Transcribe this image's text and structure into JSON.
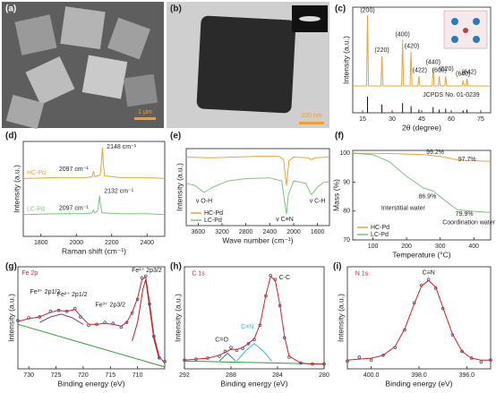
{
  "images": [
    {
      "panel": "(a)",
      "scale_bar": "1 μm"
    },
    {
      "panel": "(b)",
      "scale_bar": "200 nm"
    }
  ],
  "chart_data": [
    {
      "type": "line",
      "panel": "(c)",
      "xlabel": "2θ (degree)",
      "ylabel": "Intensity (a.u.)",
      "xlim": [
        10,
        80
      ],
      "xticks": [
        15,
        30,
        45,
        60,
        75
      ],
      "ylim": [
        -3,
        10
      ],
      "series": [
        {
          "color": "#e8a33d",
          "style": "line",
          "x": [
            10,
            17,
            17.5,
            18,
            24.3,
            24.8,
            25.3,
            34.8,
            35.3,
            35.8,
            39.1,
            39.6,
            40.1,
            43.1,
            43.6,
            44.1,
            50.3,
            50.8,
            51.3,
            53.4,
            53.9,
            54.4,
            56.7,
            57.2,
            57.7,
            65.5,
            66,
            66.5,
            67.5,
            68,
            68.5,
            80
          ],
          "values": [
            0.3,
            0.3,
            9,
            0.3,
            0.3,
            4,
            0.3,
            0.3,
            6,
            0.3,
            0.3,
            4.5,
            0.3,
            0.3,
            1.5,
            0.3,
            0.3,
            2.5,
            0.3,
            0.3,
            1.5,
            0.3,
            0.3,
            1.5,
            0.3,
            0.3,
            1,
            0.3,
            0.3,
            1.2,
            0.3,
            0.3
          ]
        },
        {
          "color": "#111111",
          "style": "sticks",
          "x": [
            17.5,
            24.8,
            35.3,
            39.6,
            43.6,
            50.8,
            53.9,
            57.2,
            66,
            68
          ],
          "values": [
            -1,
            -2,
            -1.8,
            -2.2,
            -2.6,
            -2.3,
            -2.6,
            -2.5,
            -2.7,
            -2.6
          ]
        }
      ],
      "annotations": [
        {
          "text": "(200)",
          "x": 17.5,
          "y": 9.6
        },
        {
          "text": "(220)",
          "x": 24.8,
          "y": 4.7
        },
        {
          "text": "(400)",
          "x": 35.3,
          "y": 6.6
        },
        {
          "text": "(420)",
          "x": 40,
          "y": 5.2
        },
        {
          "text": "(422)",
          "x": 44,
          "y": 2.2
        },
        {
          "text": "(440)",
          "x": 50.8,
          "y": 3.2
        },
        {
          "text": "(600)",
          "x": 54,
          "y": 2.2
        },
        {
          "text": "(620)",
          "x": 57.5,
          "y": 2.4
        },
        {
          "text": "(640)",
          "x": 66,
          "y": 1.8
        },
        {
          "text": "(642)",
          "x": 69,
          "y": 2.0
        },
        {
          "text": "JCPDS No. 01-0239",
          "x": 60,
          "y": -0.8
        }
      ]
    },
    {
      "type": "line",
      "panel": "(d)",
      "xlabel": "Raman shift (cm⁻¹)",
      "ylabel": "Intensity (a.u.)",
      "xlim": [
        1700,
        2500
      ],
      "xticks": [
        1800,
        2000,
        2200,
        2400
      ],
      "ylim": [
        0,
        10.5
      ],
      "legend": "inline",
      "series": [
        {
          "name": "HC-Pd",
          "color": "#e8a33d",
          "style": "line",
          "x": [
            1700,
            1900,
            2050,
            2090,
            2097,
            2104,
            2135,
            2143,
            2148,
            2153,
            2160,
            2250,
            2400,
            2500
          ],
          "values": [
            6.4,
            6.5,
            6.5,
            6.6,
            7.2,
            6.6,
            6.8,
            8.5,
            9.8,
            8.0,
            6.7,
            6.5,
            6.5,
            6.4
          ]
        },
        {
          "name": "LC-Pd",
          "color": "#7cc47c",
          "style": "line",
          "x": [
            1700,
            1900,
            2050,
            2090,
            2097,
            2104,
            2120,
            2128,
            2132,
            2136,
            2145,
            2250,
            2400,
            2500
          ],
          "values": [
            2.4,
            2.5,
            2.5,
            2.6,
            2.9,
            2.6,
            2.8,
            3.8,
            4.5,
            3.6,
            2.6,
            2.5,
            2.5,
            2.4
          ]
        }
      ],
      "annotations": [
        {
          "text": "2148 cm⁻¹",
          "x": 2255,
          "y": 9.9
        },
        {
          "text": "2097 cm⁻¹",
          "x": 1985,
          "y": 7.4
        },
        {
          "text": "2132 cm⁻¹",
          "x": 2240,
          "y": 5.0
        },
        {
          "text": "2097 cm⁻¹",
          "x": 1985,
          "y": 3.1
        }
      ]
    },
    {
      "type": "line",
      "panel": "(e)",
      "xlabel": "Wave number (cm⁻¹)",
      "ylabel": "Intensity (a.u.)",
      "xlim": [
        3800,
        1400
      ],
      "xticks": [
        3600,
        3200,
        2800,
        2400,
        2000,
        1600
      ],
      "ylim": [
        0,
        10
      ],
      "legend": "lower left",
      "series": [
        {
          "name": "HC-Pd",
          "color": "#e8a33d",
          "style": "line",
          "x": [
            3800,
            3400,
            3000,
            2600,
            2250,
            2170,
            2120,
            2080,
            2000,
            1750,
            1700,
            1650,
            1400
          ],
          "values": [
            8.9,
            8.8,
            8.9,
            9,
            9,
            8.6,
            5.2,
            8.4,
            8.9,
            8.8,
            8.5,
            8.8,
            8.9
          ]
        },
        {
          "name": "LC-Pd",
          "color": "#7cc47c",
          "style": "line",
          "x": [
            3800,
            3650,
            3500,
            3350,
            3100,
            2800,
            2400,
            2200,
            2150,
            2120,
            2090,
            2000,
            1800,
            1700,
            1600,
            1500,
            1400
          ],
          "values": [
            5.5,
            5.2,
            4.3,
            5,
            5.8,
            6.1,
            6.2,
            5.8,
            3,
            1.5,
            4,
            5.8,
            5.5,
            4,
            5,
            5.6,
            5.7
          ]
        }
      ],
      "annotations": [
        {
          "text": "ν O-H",
          "x": 3500,
          "y": 3.2
        },
        {
          "text": "ν C≡N",
          "x": 2150,
          "y": 0.8
        },
        {
          "text": "ν C-H",
          "x": 1600,
          "y": 3.2
        }
      ]
    },
    {
      "type": "line",
      "panel": "(f)",
      "xlabel": "Temperature (°C)",
      "ylabel": "Mass (%)",
      "xlim": [
        40,
        450
      ],
      "xticks": [
        100,
        200,
        300,
        400
      ],
      "ylim": [
        70,
        101
      ],
      "yticks": [
        70,
        80,
        90,
        100
      ],
      "legend": "lower left",
      "series": [
        {
          "name": "HC-Pd",
          "color": "#e8a33d",
          "style": "line",
          "x": [
            40,
            100,
            150,
            250,
            280,
            320,
            350,
            400,
            450
          ],
          "values": [
            100,
            100,
            99.9,
            99.5,
            99.2,
            98.5,
            97.7,
            97.4,
            97.2
          ]
        },
        {
          "name": "LC-Pd",
          "color": "#7cc47c",
          "style": "line",
          "x": [
            40,
            100,
            150,
            200,
            250,
            280,
            310,
            350,
            400,
            450
          ],
          "values": [
            100,
            99.5,
            97,
            92,
            88,
            86.9,
            84,
            80.5,
            79.9,
            79.5
          ]
        }
      ],
      "annotations": [
        {
          "text": "99.2%",
          "x": 285,
          "y": 100.4
        },
        {
          "text": "97.7%",
          "x": 380,
          "y": 97.8
        },
        {
          "text": "86.9%",
          "x": 262,
          "y": 85
        },
        {
          "text": "79.9%",
          "x": 372,
          "y": 79
        },
        {
          "text": "Interstitial water",
          "x": 190,
          "y": 81
        },
        {
          "text": "Coordination water",
          "x": 385,
          "y": 76
        }
      ]
    },
    {
      "type": "line",
      "panel": "(g)",
      "xlabel": "Binding energy (eV)",
      "ylabel": "Intensity (a.u.)",
      "xlim": [
        732,
        705
      ],
      "xticks": [
        730,
        725,
        720,
        715,
        710
      ],
      "ylim": [
        0,
        11
      ],
      "series": [
        {
          "color": "#2e9b3a",
          "style": "line",
          "x": [
            732,
            705
          ],
          "values": [
            4.8,
            0.2
          ]
        },
        {
          "color": "#7a3a8a",
          "style": "line",
          "x": [
            728,
            726,
            724,
            722,
            720
          ],
          "values": [
            5.0,
            5.6,
            5.9,
            5.5,
            4.8
          ]
        },
        {
          "color": "#b2222a",
          "style": "line",
          "x": [
            711,
            710,
            709,
            708.5,
            708,
            707,
            706
          ],
          "values": [
            3.0,
            5.0,
            8.6,
            9.6,
            7.5,
            3.2,
            1.0
          ]
        },
        {
          "color": "#3a4a9a",
          "style": "dots",
          "x": [
            732,
            730,
            728,
            726,
            724.5,
            723,
            721.5,
            720.5,
            719,
            717.5,
            716,
            714.5,
            713,
            712,
            711,
            710,
            709.2,
            708.5,
            707.8,
            707,
            706,
            705
          ],
          "values": [
            5.2,
            5.5,
            5.6,
            6.2,
            6.3,
            6.2,
            6.5,
            5.6,
            4.7,
            4.8,
            5.0,
            4.9,
            4.5,
            5.0,
            6.0,
            7.5,
            9.8,
            10,
            7,
            3.5,
            1.2,
            0.8
          ]
        },
        {
          "color": "#d62020",
          "style": "line",
          "x": [
            732,
            730,
            728,
            726,
            724.5,
            723,
            721.5,
            720.5,
            719,
            717.5,
            716,
            714.5,
            713,
            712,
            711,
            710,
            709.2,
            708.5,
            707.8,
            707,
            706,
            705
          ],
          "values": [
            5.1,
            5.4,
            5.6,
            6.1,
            6.3,
            6.2,
            6.4,
            5.7,
            4.8,
            4.8,
            4.9,
            4.8,
            4.6,
            5.0,
            6.1,
            7.6,
            9.6,
            9.9,
            7.2,
            3.6,
            1.3,
            0.6
          ]
        }
      ],
      "annotations": [
        {
          "text": "Fe 2p",
          "x": 729.8,
          "y": 10.3,
          "color": "#d62020"
        },
        {
          "text": "Fe³⁺ 2p1/2",
          "x": 727,
          "y": 8.3
        },
        {
          "text": "Fe²⁺ 2p1/2",
          "x": 722,
          "y": 8.0
        },
        {
          "text": "Fe³⁺ 2p3/2",
          "x": 715,
          "y": 6.9
        },
        {
          "text": "Fe²⁺ 2p3/2",
          "x": 708.3,
          "y": 10.6
        }
      ]
    },
    {
      "type": "line",
      "panel": "(h)",
      "xlabel": "Binding energy (eV)",
      "ylabel": "Intensity (a.u.)",
      "xlim": [
        292,
        280
      ],
      "xticks": [
        292,
        288,
        284,
        280
      ],
      "ylim": [
        0,
        10.5
      ],
      "series": [
        {
          "color": "#2e9b3a",
          "style": "line",
          "x": [
            292,
            280
          ],
          "values": [
            0.8,
            0.5
          ]
        },
        {
          "color": "#3fb8d8",
          "style": "line",
          "x": [
            287.5,
            286.8,
            286,
            285.2,
            284.5
          ],
          "values": [
            0.8,
            1.8,
            2.6,
            1.8,
            0.8
          ]
        },
        {
          "color": "#3a6ad0",
          "style": "line",
          "x": [
            289,
            288.3,
            287.6
          ],
          "values": [
            0.8,
            1.6,
            0.8
          ]
        },
        {
          "color": "#3a4a9a",
          "style": "dots",
          "x": [
            292,
            291,
            290,
            289,
            288.5,
            288,
            287.5,
            287,
            286.5,
            286,
            285.5,
            285,
            284.6,
            284.2,
            283.8,
            283.4,
            283,
            282,
            281,
            280
          ],
          "values": [
            0.9,
            1,
            1.1,
            1.3,
            1.8,
            2.2,
            1.9,
            2.1,
            2.6,
            3.0,
            4.5,
            7.5,
            9.6,
            9.2,
            6.5,
            3.2,
            1.2,
            0.6,
            0.5,
            0.5
          ]
        },
        {
          "color": "#d62020",
          "style": "line",
          "x": [
            292,
            291,
            290,
            289,
            288.5,
            288,
            287.5,
            287,
            286.5,
            286,
            285.5,
            285,
            284.6,
            284.2,
            283.8,
            283.4,
            283,
            282,
            281,
            280
          ],
          "values": [
            0.9,
            1,
            1.1,
            1.4,
            1.7,
            2.0,
            2.0,
            2.2,
            2.6,
            3.1,
            4.6,
            7.6,
            9.5,
            9.1,
            6.6,
            3.3,
            1.3,
            0.6,
            0.5,
            0.5
          ]
        }
      ],
      "annotations": [
        {
          "text": "C 1s",
          "x": 290.8,
          "y": 9.8,
          "color": "#d62020"
        },
        {
          "text": "C=O",
          "x": 288.8,
          "y": 3.0
        },
        {
          "text": "C≡N",
          "x": 286.6,
          "y": 4.3,
          "color": "#3fb8d8"
        },
        {
          "text": "C-C",
          "x": 283.4,
          "y": 9.4
        }
      ]
    },
    {
      "type": "line",
      "panel": "(i)",
      "xlabel": "Binding energy (eV)",
      "ylabel": "Intensity (a.u.)",
      "xlim": [
        401,
        395
      ],
      "xticks": [
        {
          "value": 400,
          "label": "400.0"
        },
        {
          "value": 398,
          "label": "398.0"
        },
        {
          "value": 396,
          "label": "396.0"
        }
      ],
      "ylim": [
        0,
        10.5
      ],
      "series": [
        {
          "color": "#3a4a9a",
          "style": "dots",
          "x": [
            401,
            400.5,
            400,
            399.5,
            399,
            398.6,
            398.2,
            397.9,
            397.6,
            397.3,
            397,
            396.6,
            396.2,
            395.8,
            395.4,
            395
          ],
          "values": [
            0.8,
            1.2,
            0.9,
            1.4,
            2.2,
            4.0,
            6.8,
            8.6,
            9.2,
            8.3,
            6.2,
            3.5,
            1.8,
            1.1,
            0.7,
            0.9
          ]
        },
        {
          "color": "#d62020",
          "style": "line",
          "x": [
            401,
            400.5,
            400,
            399.5,
            399,
            398.6,
            398.2,
            397.9,
            397.6,
            397.3,
            397,
            396.6,
            396.2,
            395.8,
            395.4,
            395
          ],
          "values": [
            0.9,
            1.0,
            1.1,
            1.4,
            2.3,
            4.1,
            6.7,
            8.5,
            9.1,
            8.4,
            6.3,
            3.6,
            1.8,
            1.1,
            0.9,
            0.9
          ]
        }
      ],
      "annotations": [
        {
          "text": "N 1s",
          "x": 400.4,
          "y": 9.8,
          "color": "#d62020"
        },
        {
          "text": "C≡N",
          "x": 397.6,
          "y": 9.9
        }
      ]
    }
  ]
}
